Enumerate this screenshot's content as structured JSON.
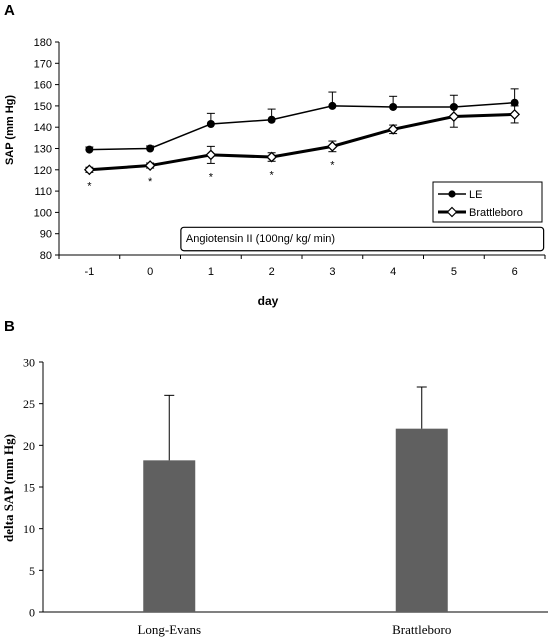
{
  "chart_data": [
    {
      "panel": "A",
      "type": "line",
      "title": "",
      "xlabel": "day",
      "ylabel": "SAP (mm Hg)",
      "ylim": [
        80,
        180
      ],
      "yticks": [
        80,
        90,
        100,
        110,
        120,
        130,
        140,
        150,
        160,
        170,
        180
      ],
      "categories": [
        "-1",
        "0",
        "1",
        "2",
        "3",
        "4",
        "5",
        "6"
      ],
      "grid": false,
      "legend_position": "right",
      "series": [
        {
          "name": "LE",
          "marker": "filled-circle",
          "color": "#000000",
          "values": [
            129.5,
            130,
            141.5,
            143.5,
            150,
            149.5,
            149.5,
            151.5
          ],
          "error": [
            1.2,
            1.2,
            5,
            5,
            6.5,
            5,
            5.5,
            6.5
          ]
        },
        {
          "name": "Brattleboro",
          "marker": "open-diamond",
          "color": "#000000",
          "values": [
            120,
            122,
            127,
            126,
            131,
            139,
            145,
            146
          ],
          "error": [
            1.2,
            1.2,
            4,
            2,
            2.5,
            2,
            5,
            4
          ]
        }
      ],
      "annotations": {
        "significance_marker": "*",
        "significance_days": [
          "-1",
          "0",
          "1",
          "2",
          "3"
        ],
        "infusion_box": "Angiotensin II (100ng/ kg/ min)",
        "infusion_start_day": "1",
        "infusion_end_day": "6"
      }
    },
    {
      "panel": "B",
      "type": "bar",
      "title": "",
      "xlabel": "",
      "ylabel": "delta SAP (mm Hg)",
      "ylim": [
        0,
        30
      ],
      "yticks": [
        0,
        5,
        10,
        15,
        20,
        25,
        30
      ],
      "categories": [
        "Long-Evans",
        "Brattleboro"
      ],
      "values": [
        18.2,
        22
      ],
      "error": [
        7.8,
        5
      ],
      "bar_color": "#606060",
      "grid": false
    }
  ]
}
